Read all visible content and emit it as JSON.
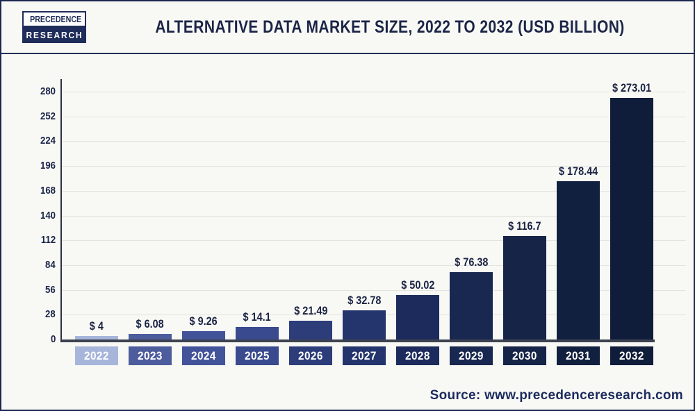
{
  "header": {
    "logo_line1": "PRECEDENCE",
    "logo_line2": "RESEARCH",
    "title": "ALTERNATIVE DATA MARKET SIZE, 2022 TO 2032 (USD BILLION)"
  },
  "chart_data": {
    "type": "bar",
    "title": "Alternative Data Market Size, 2022 to 2032 (USD Billion)",
    "categories": [
      "2022",
      "2023",
      "2024",
      "2025",
      "2026",
      "2027",
      "2028",
      "2029",
      "2030",
      "2031",
      "2032"
    ],
    "values": [
      4,
      6.08,
      9.26,
      14.1,
      21.49,
      32.78,
      50.02,
      76.38,
      116.7,
      178.44,
      273.01
    ],
    "value_labels": [
      "$ 4",
      "$ 6.08",
      "$ 9.26",
      "$ 14.1",
      "$ 21.49",
      "$ 32.78",
      "$ 50.02",
      "$ 76.38",
      "$ 116.7",
      "$ 178.44",
      "$ 273.01"
    ],
    "bar_colors": [
      "#a7b5db",
      "#4d5c9c",
      "#43539a",
      "#394a8e",
      "#2d3d7a",
      "#24346c",
      "#1c2b5c",
      "#192850",
      "#162447",
      "#12203f",
      "#0f1c3a"
    ],
    "xlabel": "",
    "ylabel": "",
    "ylim": [
      0,
      280
    ],
    "yticks": [
      0,
      28,
      56,
      84,
      112,
      140,
      168,
      196,
      224,
      252,
      280
    ],
    "grid": "horizontal",
    "legend": "none",
    "unit": "USD Billion"
  },
  "source": {
    "text": "Source: www.precedenceresearch.com"
  }
}
